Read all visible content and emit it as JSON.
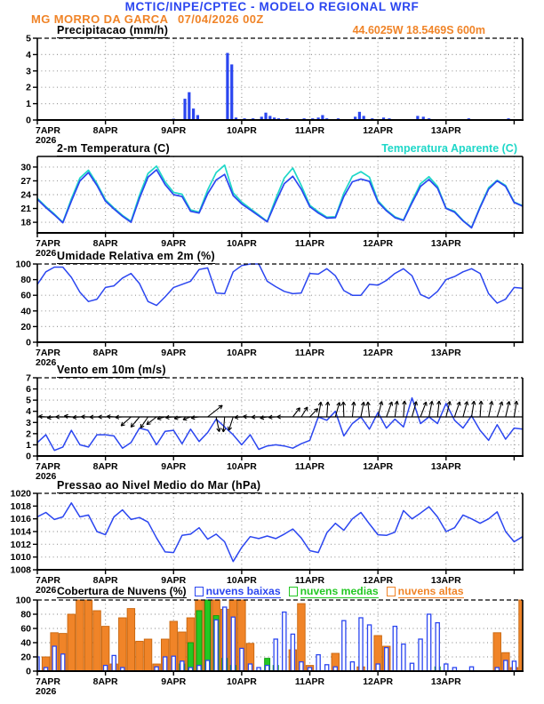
{
  "header": {
    "model_title": "MCTIC/INPE/CPTEC - MODELO REGIONAL WRF",
    "station": "MG MORRO DA GARCA",
    "run": "07/04/2026 00Z",
    "coords": "44.6025W 18.5469S 600m"
  },
  "x_axis": {
    "day_labels": [
      "7APR",
      "8APR",
      "9APR",
      "10APR",
      "11APR",
      "12APR",
      "13APR"
    ],
    "year_label": "2026",
    "hours_total": 171,
    "hours_per_day": 24,
    "step_hours": 3
  },
  "colors": {
    "blue": "#2b46f0",
    "cyan": "#1ed7c8",
    "green": "#23c823",
    "orange": "#f08428",
    "grid": "#999999",
    "black": "#000000"
  },
  "chart_data": [
    {
      "type": "bar",
      "title": "Precipitacao (mm/h)",
      "ylim": [
        0,
        5
      ],
      "yticks": [
        0,
        1,
        2,
        3,
        4,
        5
      ],
      "top_border": "dashed",
      "series": [
        {
          "name": "precipitacao",
          "color": "blue",
          "points": [
            [
              45,
              0.05
            ],
            [
              48,
              0.08
            ],
            [
              52,
              1.3
            ],
            [
              53.5,
              1.7
            ],
            [
              55,
              0.7
            ],
            [
              56.5,
              0.3
            ],
            [
              62,
              0.05
            ],
            [
              67,
              4.1
            ],
            [
              68.5,
              3.4
            ],
            [
              70,
              0.15
            ],
            [
              73,
              0.1
            ],
            [
              76,
              0.1
            ],
            [
              79,
              0.2
            ],
            [
              80.5,
              0.45
            ],
            [
              82,
              0.25
            ],
            [
              83.5,
              0.15
            ],
            [
              85,
              0.1
            ],
            [
              88,
              0.1
            ],
            [
              91,
              0.05
            ],
            [
              94,
              0.1
            ],
            [
              97,
              0.1
            ],
            [
              99,
              0.15
            ],
            [
              100.5,
              0.3
            ],
            [
              102,
              0.1
            ],
            [
              106,
              0.1
            ],
            [
              109,
              0.05
            ],
            [
              112,
              0.2
            ],
            [
              113.5,
              0.5
            ],
            [
              115,
              0.25
            ],
            [
              118,
              0.1
            ],
            [
              122,
              0.15
            ],
            [
              124,
              0.1
            ],
            [
              127,
              0.05
            ],
            [
              134,
              0.25
            ],
            [
              136,
              0.2
            ],
            [
              138,
              0.1
            ],
            [
              141,
              0.05
            ],
            [
              152,
              0.1
            ],
            [
              162,
              0.05
            ],
            [
              166,
              0.1
            ]
          ]
        }
      ]
    },
    {
      "type": "line",
      "title": "2-m Temperatura (C)",
      "ylim": [
        15.7,
        32.3
      ],
      "yticks": [
        18,
        21,
        24,
        27,
        30
      ],
      "top_border": "solid",
      "series": [
        {
          "name": "2-m Temperatura (C)",
          "color": "blue",
          "values": [
            23.0,
            21.2,
            19.6,
            17.9,
            22.6,
            27.0,
            28.8,
            26.0,
            22.6,
            20.9,
            19.3,
            18.0,
            23.2,
            27.8,
            29.4,
            26.2,
            24.0,
            23.6,
            20.4,
            20.0,
            24.2,
            27.2,
            28.4,
            23.8,
            22.0,
            20.7,
            19.4,
            18.1,
            22.4,
            26.4,
            28.0,
            25.2,
            21.4,
            20.0,
            18.9,
            19.0,
            23.6,
            26.8,
            27.4,
            26.9,
            22.4,
            20.5,
            19.0,
            18.4,
            22.2,
            25.8,
            27.3,
            25.4,
            21.0,
            20.2,
            18.3,
            16.8,
            21.2,
            25.2,
            27.0,
            25.8,
            22.3,
            21.5
          ]
        },
        {
          "name": "Temperatura Aparente (C)",
          "color": "cyan",
          "values": [
            23.2,
            21.4,
            19.8,
            18.0,
            23.1,
            27.6,
            29.3,
            26.4,
            22.9,
            21.1,
            19.5,
            18.2,
            23.9,
            28.6,
            30.2,
            26.8,
            24.5,
            24.1,
            20.7,
            20.2,
            25.0,
            28.8,
            30.4,
            24.4,
            22.4,
            21.0,
            19.6,
            18.2,
            23.1,
            27.6,
            29.8,
            26.0,
            21.7,
            20.3,
            19.1,
            19.2,
            24.3,
            28.0,
            29.0,
            27.8,
            22.7,
            20.7,
            19.2,
            18.5,
            22.6,
            26.4,
            27.9,
            25.8,
            21.1,
            20.4,
            18.4,
            16.9,
            21.4,
            25.5,
            27.1,
            26.0,
            22.4,
            21.6
          ]
        }
      ]
    },
    {
      "type": "line",
      "title": "Umidade Relativa em 2m (%)",
      "ylim": [
        0,
        100
      ],
      "yticks": [
        0,
        20,
        40,
        60,
        80,
        100
      ],
      "top_border": "dashed",
      "series": [
        {
          "name": "umidade relativa",
          "color": "blue",
          "values": [
            74,
            90,
            96,
            96,
            83,
            64,
            52,
            55,
            70,
            72,
            82,
            88,
            75,
            52,
            47,
            58,
            70,
            74,
            78,
            93,
            95,
            63,
            62,
            90,
            98,
            100,
            100,
            78,
            71,
            65,
            62,
            63,
            88,
            87,
            94,
            85,
            66,
            60,
            60,
            74,
            73,
            79,
            88,
            94,
            85,
            61,
            56,
            65,
            80,
            84,
            90,
            94,
            88,
            62,
            50,
            55,
            70,
            69
          ]
        }
      ]
    },
    {
      "type": "line-barbs",
      "title": "Vento em 10m (m/s)",
      "ylim": [
        0,
        7
      ],
      "yticks": [
        0,
        1,
        2,
        3,
        4,
        5,
        6,
        7
      ],
      "top_border": "dashed",
      "barb_baseline": 3.5,
      "series": [
        {
          "name": "velocidade do vento",
          "color": "blue",
          "values": [
            1.2,
            1.9,
            0.5,
            0.8,
            2.3,
            1.0,
            0.8,
            1.9,
            1.9,
            1.8,
            0.7,
            1.2,
            2.5,
            2.3,
            1.0,
            2.2,
            2.3,
            1.1,
            2.4,
            1.3,
            2.1,
            3.3,
            2.6,
            1.9,
            1.0,
            1.9,
            0.6,
            0.9,
            1.0,
            0.9,
            0.7,
            1.1,
            1.4,
            3.5,
            3.2,
            4.0,
            1.8,
            2.9,
            3.5,
            2.4,
            3.9,
            2.5,
            3.3,
            2.6,
            5.2,
            2.9,
            3.5,
            2.9,
            4.7,
            3.2,
            2.5,
            3.6,
            2.3,
            1.4,
            2.8,
            1.5,
            2.5,
            2.4
          ]
        }
      ],
      "barbs": [
        [
          185,
          8
        ],
        [
          175,
          8
        ],
        [
          188,
          8
        ],
        [
          180,
          8
        ],
        [
          172,
          8
        ],
        [
          185,
          8
        ],
        [
          178,
          8
        ],
        [
          182,
          8
        ],
        [
          180,
          8
        ],
        [
          176,
          8
        ],
        [
          184,
          8
        ],
        [
          222,
          15
        ],
        [
          230,
          15
        ],
        [
          236,
          15
        ],
        [
          218,
          14
        ],
        [
          195,
          9
        ],
        [
          185,
          9
        ],
        [
          192,
          9
        ],
        [
          200,
          9
        ],
        [
          188,
          9
        ],
        [
          38,
          21
        ],
        [
          282,
          17
        ],
        [
          265,
          17
        ],
        [
          252,
          16
        ],
        [
          185,
          8
        ],
        [
          176,
          8
        ],
        [
          182,
          8
        ],
        [
          190,
          8
        ],
        [
          184,
          8
        ],
        [
          179,
          8
        ],
        [
          52,
          13
        ],
        [
          58,
          13
        ],
        [
          46,
          13
        ],
        [
          80,
          17
        ],
        [
          86,
          17
        ],
        [
          74,
          17
        ],
        [
          92,
          17
        ],
        [
          84,
          17
        ],
        [
          79,
          17
        ],
        [
          96,
          17
        ],
        [
          76,
          18
        ],
        [
          70,
          18
        ],
        [
          82,
          18
        ],
        [
          86,
          18
        ],
        [
          74,
          18
        ],
        [
          69,
          18
        ],
        [
          79,
          18
        ],
        [
          84,
          18
        ],
        [
          76,
          18
        ],
        [
          71,
          18
        ],
        [
          75,
          18
        ],
        [
          81,
          18
        ],
        [
          86,
          18
        ],
        [
          78,
          18
        ],
        [
          72,
          18
        ],
        [
          77,
          18
        ],
        [
          81,
          18
        ],
        [
          74,
          18
        ]
      ]
    },
    {
      "type": "line",
      "title": "Pressao ao Nivel Medio do Mar (hPa)",
      "ylim": [
        1008,
        1020
      ],
      "yticks": [
        1008,
        1010,
        1012,
        1014,
        1016,
        1018,
        1020
      ],
      "top_border": "dashed",
      "series": [
        {
          "name": "pressao",
          "color": "blue",
          "values": [
            1016.3,
            1017.0,
            1015.9,
            1016.3,
            1018.5,
            1016.3,
            1016.6,
            1014.0,
            1013.5,
            1016.3,
            1017.4,
            1015.9,
            1016.2,
            1015.5,
            1013.0,
            1010.8,
            1010.7,
            1013.4,
            1013.6,
            1014.6,
            1012.8,
            1013.6,
            1012.4,
            1009.3,
            1011.5,
            1013.2,
            1012.9,
            1013.3,
            1012.9,
            1013.6,
            1014.4,
            1013.0,
            1011.0,
            1010.7,
            1013.8,
            1015.3,
            1014.2,
            1016.0,
            1017.0,
            1015.2,
            1013.5,
            1013.4,
            1013.9,
            1017.3,
            1016.0,
            1016.9,
            1017.9,
            1016.3,
            1014.0,
            1014.6,
            1016.6,
            1016.0,
            1015.3,
            1016.0,
            1017.1,
            1014.0,
            1012.4,
            1013.2
          ]
        }
      ]
    },
    {
      "type": "bar-group",
      "title": "Cobertura de Nuvens (%)",
      "ylim": [
        0,
        100
      ],
      "yticks": [
        0,
        20,
        40,
        60,
        80,
        100
      ],
      "top_border": "dashed",
      "series": [
        {
          "name": "nuvens baixas",
          "color": "blue",
          "style": "outline",
          "values": [
            20,
            5,
            35,
            24,
            0,
            0,
            0,
            0,
            8,
            22,
            5,
            0,
            0,
            0,
            6,
            20,
            21,
            14,
            5,
            8,
            15,
            72,
            90,
            76,
            32,
            10,
            5,
            8,
            45,
            83,
            52,
            13,
            5,
            23,
            9,
            6,
            71,
            13,
            75,
            65,
            10,
            33,
            63,
            38,
            11,
            45,
            80,
            68,
            10,
            5,
            0,
            6,
            0,
            0,
            5,
            15,
            14,
            0
          ]
        },
        {
          "name": "nuvens medias",
          "color": "green",
          "style": "fill",
          "values": [
            0,
            0,
            0,
            0,
            0,
            0,
            0,
            0,
            0,
            0,
            0,
            0,
            0,
            0,
            0,
            0,
            0,
            10,
            40,
            85,
            100,
            78,
            18,
            8,
            0,
            0,
            0,
            18,
            8,
            0,
            0,
            0,
            0,
            0,
            0,
            0,
            0,
            0,
            0,
            0,
            0,
            0,
            0,
            0,
            0,
            0,
            0,
            6,
            0,
            0,
            0,
            0,
            0,
            0,
            0,
            0,
            0,
            0
          ]
        },
        {
          "name": "nuvens altas",
          "color": "orange",
          "style": "fill",
          "values": [
            0,
            20,
            54,
            53,
            80,
            100,
            100,
            85,
            63,
            10,
            75,
            88,
            42,
            45,
            10,
            45,
            70,
            55,
            75,
            100,
            100,
            100,
            87,
            100,
            100,
            39,
            0,
            0,
            0,
            0,
            30,
            95,
            8,
            0,
            0,
            25,
            0,
            0,
            6,
            0,
            50,
            35,
            0,
            0,
            0,
            0,
            0,
            0,
            0,
            0,
            0,
            0,
            0,
            0,
            54,
            26,
            5,
            100
          ]
        }
      ]
    }
  ]
}
